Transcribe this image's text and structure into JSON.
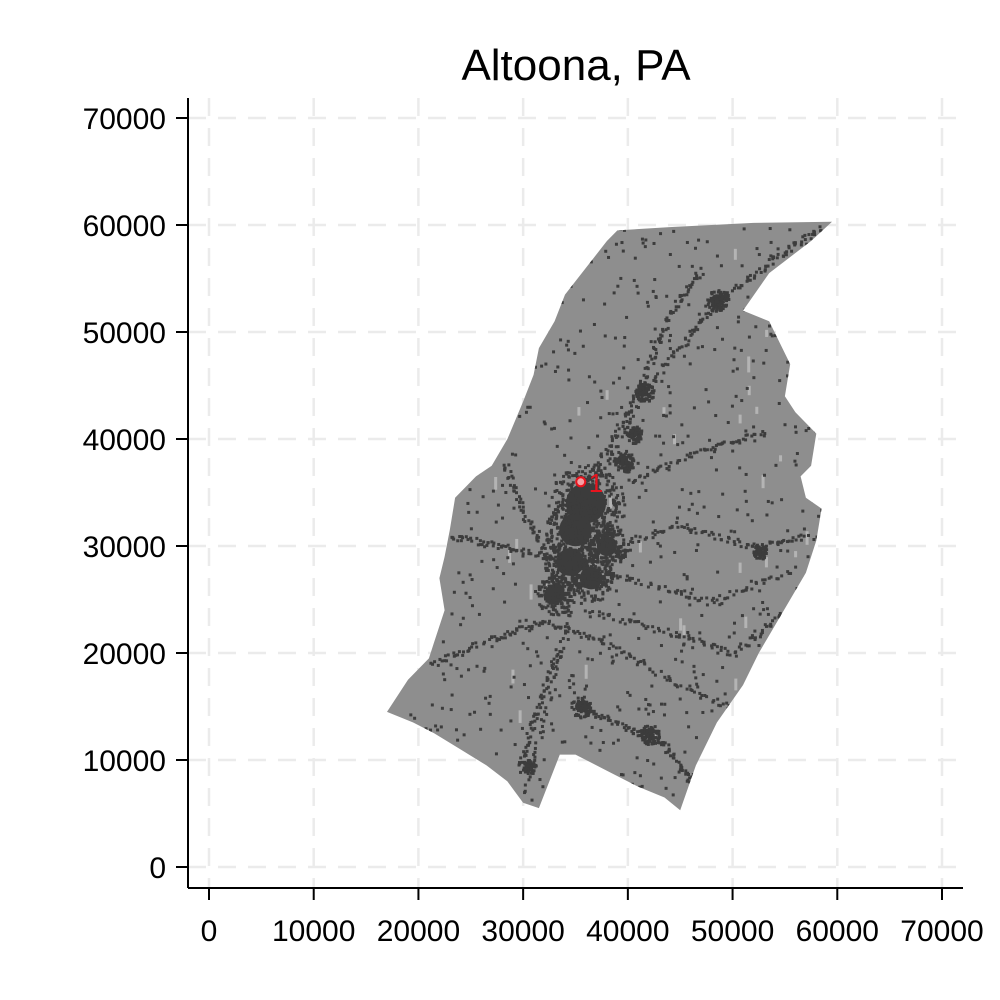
{
  "title": "Altoona, PA",
  "colors": {
    "region_fill": "#8e8e8e",
    "urban": "#3c3c3c",
    "light_patch": "#b4b4b4",
    "grid": "#ebebeb",
    "marker": "#e8141e",
    "marker_fill": "#f4a0a4"
  },
  "chart_data": {
    "type": "map",
    "title": "Altoona, PA",
    "xlim": [
      0,
      70000
    ],
    "ylim": [
      0,
      70000
    ],
    "x_ticks": [
      0,
      10000,
      20000,
      30000,
      40000,
      50000,
      60000,
      70000
    ],
    "y_ticks": [
      0,
      10000,
      20000,
      30000,
      40000,
      50000,
      60000,
      70000
    ],
    "x_tick_labels": [
      "0",
      "10000",
      "20000",
      "30000",
      "40000",
      "50000",
      "60000",
      "70000"
    ],
    "y_tick_labels": [
      "0",
      "10000",
      "20000",
      "30000",
      "40000",
      "50000",
      "60000",
      "70000"
    ],
    "grid": true,
    "region_outline": [
      [
        17000,
        14500
      ],
      [
        19000,
        17500
      ],
      [
        21000,
        19500
      ],
      [
        21500,
        21000
      ],
      [
        22500,
        24000
      ],
      [
        22000,
        27000
      ],
      [
        22500,
        29000
      ],
      [
        23000,
        31500
      ],
      [
        23500,
        34500
      ],
      [
        25500,
        36500
      ],
      [
        27000,
        37500
      ],
      [
        28500,
        40000
      ],
      [
        30000,
        43500
      ],
      [
        31000,
        46000
      ],
      [
        31500,
        48500
      ],
      [
        33000,
        51000
      ],
      [
        34000,
        53500
      ],
      [
        36000,
        56000
      ],
      [
        38000,
        58500
      ],
      [
        39000,
        59500
      ],
      [
        44000,
        59800
      ],
      [
        52000,
        60200
      ],
      [
        59500,
        60300
      ],
      [
        57500,
        58500
      ],
      [
        53500,
        55500
      ],
      [
        51000,
        52000
      ],
      [
        53500,
        51000
      ],
      [
        54500,
        49000
      ],
      [
        55500,
        47000
      ],
      [
        55000,
        44000
      ],
      [
        56000,
        42500
      ],
      [
        58000,
        40500
      ],
      [
        57500,
        37500
      ],
      [
        56500,
        36500
      ],
      [
        57000,
        34500
      ],
      [
        58500,
        33500
      ],
      [
        58000,
        30500
      ],
      [
        57000,
        27500
      ],
      [
        55500,
        25000
      ],
      [
        54000,
        22500
      ],
      [
        52500,
        20000
      ],
      [
        51000,
        17000
      ],
      [
        48500,
        13500
      ],
      [
        46500,
        9500
      ],
      [
        45000,
        5300
      ],
      [
        43500,
        6500
      ],
      [
        41000,
        7500
      ],
      [
        38000,
        9000
      ],
      [
        35000,
        10500
      ],
      [
        33500,
        10500
      ],
      [
        31500,
        5500
      ],
      [
        30000,
        6000
      ],
      [
        28500,
        8000
      ],
      [
        26500,
        9500
      ],
      [
        24000,
        11000
      ],
      [
        21500,
        12500
      ],
      [
        19500,
        13500
      ],
      [
        17000,
        14500
      ]
    ],
    "urban_blobs": [
      {
        "x": 36000,
        "y": 34000,
        "r": 3200
      },
      {
        "x": 35000,
        "y": 31500,
        "r": 2600
      },
      {
        "x": 34500,
        "y": 28500,
        "r": 2200
      },
      {
        "x": 36500,
        "y": 27000,
        "r": 1800
      },
      {
        "x": 38000,
        "y": 30000,
        "r": 1600
      },
      {
        "x": 33000,
        "y": 25500,
        "r": 1600
      },
      {
        "x": 48500,
        "y": 53000,
        "r": 900
      },
      {
        "x": 41500,
        "y": 44500,
        "r": 800
      },
      {
        "x": 52500,
        "y": 29500,
        "r": 600
      },
      {
        "x": 35500,
        "y": 15000,
        "r": 900
      },
      {
        "x": 42000,
        "y": 12500,
        "r": 800
      },
      {
        "x": 30500,
        "y": 9500,
        "r": 600
      },
      {
        "x": 39500,
        "y": 38000,
        "r": 900
      },
      {
        "x": 40500,
        "y": 40500,
        "r": 700
      }
    ],
    "points": [
      {
        "x": 35500,
        "y": 36000,
        "label": "1"
      }
    ]
  }
}
